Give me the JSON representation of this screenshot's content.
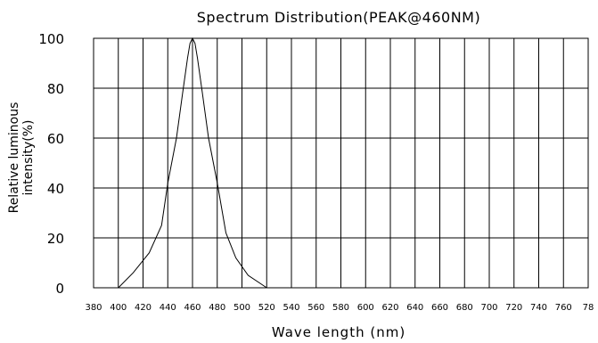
{
  "chart_data": {
    "type": "line",
    "title": "Spectrum Distribution(PEAK@460NM)",
    "xlabel": "Wave length (nm)",
    "ylabel_lines": [
      "Relative luminous",
      "intensity(%)"
    ],
    "xlim": [
      380,
      780
    ],
    "ylim": [
      0,
      100
    ],
    "x_ticks": [
      "380",
      "400",
      "420",
      "440",
      "460",
      "480",
      "500",
      "520",
      "540",
      "560",
      "580",
      "600",
      "620",
      "640",
      "660",
      "680",
      "700",
      "720",
      "740",
      "760",
      "78"
    ],
    "y_ticks": [
      "0",
      "20",
      "40",
      "60",
      "80",
      "100"
    ],
    "grid": true,
    "series": [
      {
        "x": [
          400,
          412,
          425,
          435,
          440,
          447,
          452,
          456,
          458,
          460,
          462,
          464,
          468,
          473,
          480,
          487,
          495,
          505,
          520
        ],
        "y": [
          0,
          6,
          14,
          25,
          42,
          60,
          78,
          92,
          98,
          100,
          98,
          92,
          78,
          60,
          42,
          22,
          12,
          5,
          0
        ]
      }
    ],
    "colors": {
      "line": "#000000",
      "grid": "#000000"
    }
  }
}
